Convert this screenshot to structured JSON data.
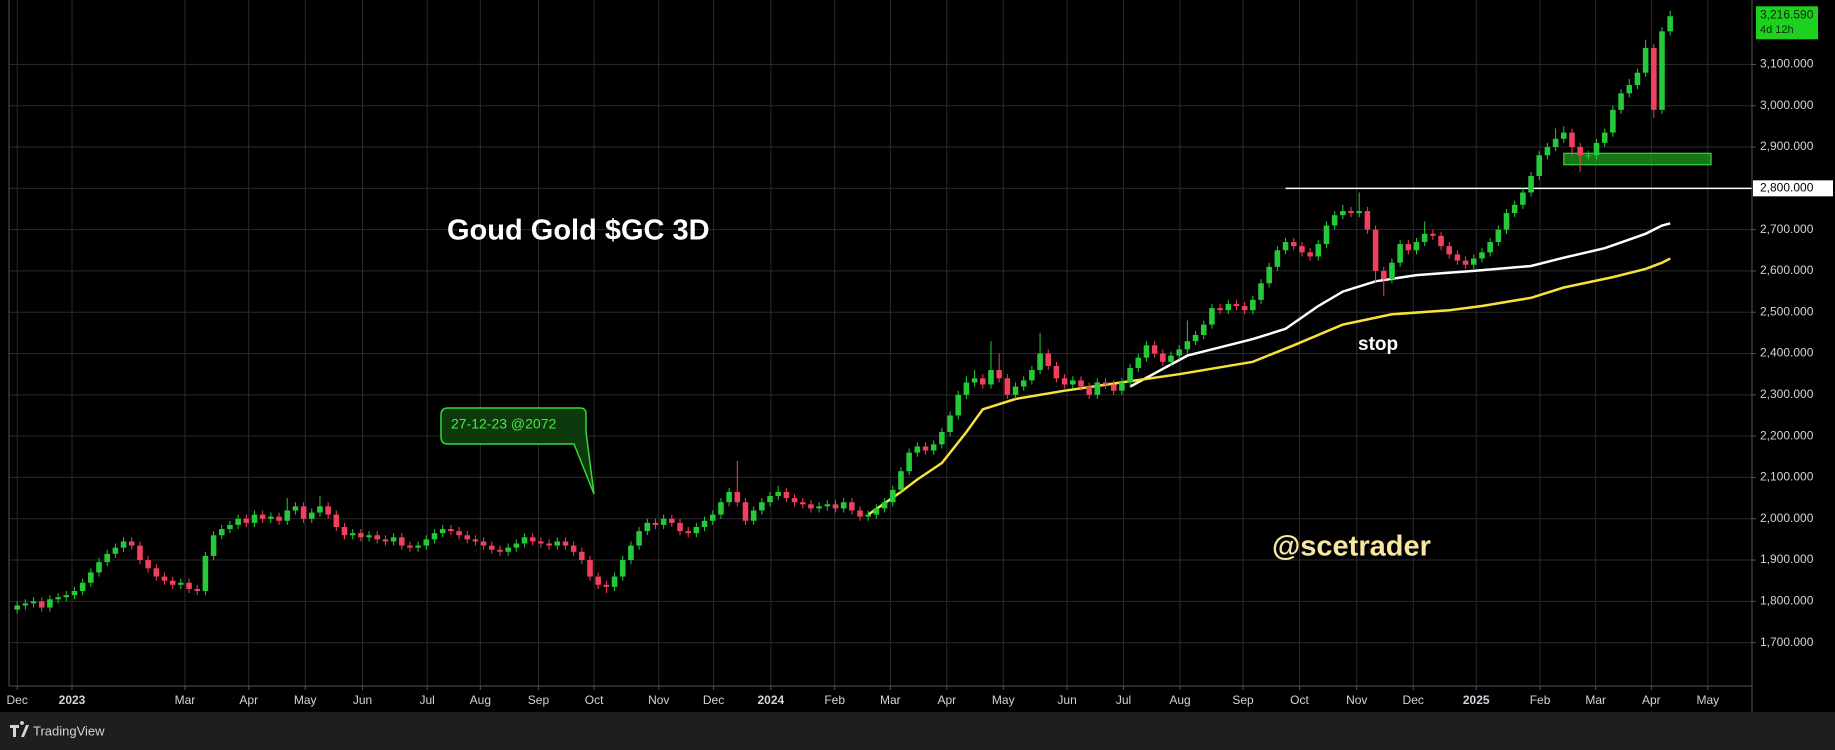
{
  "chart_data": {
    "type": "candlestick",
    "title": "Goud Gold $GC 3D",
    "watermark": "@scetrader",
    "callout": "27-12-23 @2072",
    "stop_label": "stop",
    "up_color": "#26c93a",
    "down_color": "#f0405d",
    "open": [
      1780,
      1790,
      1795,
      1800,
      1785,
      1805,
      1810,
      1815,
      1825,
      1845,
      1870,
      1895,
      1915,
      1930,
      1945,
      1935,
      1900,
      1880,
      1860,
      1850,
      1840,
      1845,
      1830,
      1825,
      1910,
      1960,
      1975,
      1985,
      2000,
      1990,
      2010,
      2000,
      2005,
      1995,
      2020,
      2030,
      2000,
      2015,
      2030,
      2010,
      1980,
      1960,
      1965,
      1955,
      1960,
      1950,
      1945,
      1955,
      1935,
      1930,
      1935,
      1950,
      1965,
      1975,
      1970,
      1960,
      1950,
      1945,
      1935,
      1925,
      1920,
      1930,
      1940,
      1955,
      1945,
      1940,
      1935,
      1945,
      1935,
      1920,
      1900,
      1860,
      1840,
      1835,
      1860,
      1900,
      1935,
      1970,
      1990,
      1985,
      2000,
      1990,
      1970,
      1965,
      1980,
      1995,
      2010,
      2040,
      2065,
      2040,
      1995,
      2020,
      2040,
      2055,
      2065,
      2050,
      2040,
      2035,
      2025,
      2030,
      2035,
      2025,
      2040,
      2020,
      2005,
      2010,
      2025,
      2040,
      2070,
      2115,
      2160,
      2175,
      2165,
      2180,
      2210,
      2250,
      2300,
      2330,
      2340,
      2325,
      2360,
      2340,
      2300,
      2320,
      2335,
      2360,
      2400,
      2370,
      2340,
      2325,
      2335,
      2320,
      2300,
      2330,
      2325,
      2310,
      2330,
      2365,
      2390,
      2420,
      2400,
      2380,
      2395,
      2410,
      2430,
      2445,
      2470,
      2510,
      2505,
      2520,
      2515,
      2505,
      2530,
      2570,
      2610,
      2650,
      2670,
      2660,
      2645,
      2635,
      2665,
      2710,
      2735,
      2745,
      2740,
      2745,
      2700,
      2600,
      2580,
      2620,
      2665,
      2650,
      2670,
      2690,
      2685,
      2660,
      2640,
      2625,
      2615,
      2630,
      2645,
      2670,
      2700,
      2740,
      2760,
      2790,
      2830,
      2880,
      2900,
      2920,
      2935,
      2900,
      2880,
      2880,
      2910,
      2935,
      2990,
      3030,
      3050,
      3080,
      3140,
      2990,
      3180
    ],
    "high": [
      1800,
      1805,
      1810,
      1810,
      1815,
      1820,
      1825,
      1835,
      1855,
      1880,
      1905,
      1925,
      1940,
      1955,
      1955,
      1945,
      1910,
      1890,
      1870,
      1860,
      1855,
      1855,
      1840,
      1920,
      1970,
      1985,
      1995,
      2010,
      2010,
      2020,
      2020,
      2015,
      2015,
      2050,
      2040,
      2040,
      2025,
      2055,
      2040,
      2020,
      1990,
      1975,
      1975,
      1970,
      1970,
      1960,
      1965,
      1965,
      1945,
      1945,
      1960,
      1975,
      1985,
      1985,
      1980,
      1970,
      1960,
      1955,
      1945,
      1935,
      1940,
      1950,
      1965,
      1965,
      1955,
      1950,
      1955,
      1955,
      1945,
      1930,
      1910,
      1870,
      1850,
      1870,
      1910,
      1945,
      1980,
      2000,
      2000,
      2010,
      2010,
      2000,
      1980,
      1990,
      2005,
      2020,
      2050,
      2075,
      2140,
      2050,
      2030,
      2050,
      2065,
      2080,
      2075,
      2060,
      2050,
      2045,
      2040,
      2045,
      2045,
      2050,
      2050,
      2030,
      2020,
      2035,
      2050,
      2080,
      2125,
      2170,
      2185,
      2185,
      2190,
      2220,
      2260,
      2310,
      2345,
      2360,
      2350,
      2430,
      2400,
      2350,
      2330,
      2345,
      2370,
      2450,
      2410,
      2380,
      2350,
      2345,
      2345,
      2330,
      2340,
      2340,
      2335,
      2340,
      2375,
      2400,
      2430,
      2430,
      2410,
      2405,
      2420,
      2480,
      2455,
      2480,
      2520,
      2520,
      2530,
      2530,
      2525,
      2540,
      2580,
      2620,
      2660,
      2680,
      2680,
      2670,
      2655,
      2675,
      2720,
      2745,
      2760,
      2755,
      2790,
      2755,
      2710,
      2610,
      2630,
      2675,
      2675,
      2680,
      2720,
      2700,
      2695,
      2670,
      2650,
      2635,
      2640,
      2655,
      2680,
      2710,
      2750,
      2770,
      2800,
      2840,
      2890,
      2910,
      2945,
      2950,
      2945,
      2910,
      2890,
      2920,
      2945,
      3000,
      3040,
      3065,
      3090,
      3160,
      3150,
      3190,
      3230
    ],
    "low": [
      1770,
      1780,
      1785,
      1775,
      1775,
      1795,
      1800,
      1805,
      1815,
      1835,
      1860,
      1885,
      1905,
      1920,
      1925,
      1890,
      1870,
      1850,
      1840,
      1830,
      1830,
      1820,
      1815,
      1815,
      1900,
      1950,
      1965,
      1975,
      1980,
      1980,
      1990,
      1990,
      1985,
      1985,
      2010,
      1990,
      1990,
      2005,
      2000,
      1970,
      1950,
      1950,
      1945,
      1945,
      1940,
      1935,
      1935,
      1925,
      1920,
      1920,
      1925,
      1940,
      1955,
      1960,
      1950,
      1940,
      1935,
      1925,
      1915,
      1910,
      1910,
      1920,
      1930,
      1935,
      1930,
      1925,
      1925,
      1925,
      1910,
      1890,
      1850,
      1830,
      1820,
      1825,
      1850,
      1890,
      1925,
      1960,
      1975,
      1975,
      1980,
      1960,
      1955,
      1955,
      1970,
      1985,
      2000,
      2030,
      2030,
      1985,
      1985,
      2010,
      2030,
      2045,
      2040,
      2030,
      2025,
      2015,
      2015,
      2020,
      2015,
      2015,
      2010,
      1995,
      1995,
      2000,
      2015,
      2030,
      2060,
      2105,
      2150,
      2155,
      2155,
      2170,
      2200,
      2240,
      2290,
      2320,
      2315,
      2315,
      2330,
      2290,
      2290,
      2310,
      2325,
      2350,
      2360,
      2330,
      2315,
      2315,
      2310,
      2290,
      2290,
      2315,
      2300,
      2300,
      2320,
      2355,
      2380,
      2390,
      2370,
      2370,
      2385,
      2400,
      2420,
      2435,
      2460,
      2495,
      2495,
      2505,
      2495,
      2495,
      2520,
      2560,
      2600,
      2640,
      2650,
      2635,
      2625,
      2625,
      2655,
      2700,
      2725,
      2730,
      2730,
      2690,
      2570,
      2540,
      2570,
      2610,
      2640,
      2640,
      2660,
      2675,
      2650,
      2630,
      2615,
      2605,
      2605,
      2620,
      2635,
      2660,
      2690,
      2730,
      2750,
      2780,
      2820,
      2870,
      2890,
      2910,
      2880,
      2840,
      2870,
      2870,
      2900,
      2925,
      2980,
      3020,
      3040,
      3070,
      2970,
      2980,
      3170
    ],
    "close": [
      1790,
      1795,
      1800,
      1785,
      1805,
      1810,
      1815,
      1825,
      1845,
      1870,
      1895,
      1915,
      1930,
      1945,
      1935,
      1900,
      1880,
      1860,
      1850,
      1840,
      1845,
      1830,
      1825,
      1910,
      1960,
      1975,
      1985,
      2000,
      1990,
      2010,
      2000,
      2005,
      1995,
      2020,
      2030,
      2000,
      2015,
      2030,
      2010,
      1980,
      1960,
      1965,
      1955,
      1960,
      1950,
      1945,
      1955,
      1935,
      1930,
      1935,
      1950,
      1965,
      1975,
      1970,
      1960,
      1950,
      1945,
      1935,
      1925,
      1920,
      1930,
      1940,
      1955,
      1945,
      1940,
      1935,
      1945,
      1935,
      1920,
      1900,
      1860,
      1840,
      1835,
      1860,
      1900,
      1935,
      1970,
      1990,
      1985,
      2000,
      1990,
      1970,
      1965,
      1980,
      1995,
      2010,
      2040,
      2065,
      2040,
      1995,
      2020,
      2040,
      2055,
      2065,
      2050,
      2040,
      2035,
      2025,
      2030,
      2035,
      2025,
      2040,
      2020,
      2005,
      2010,
      2025,
      2040,
      2070,
      2115,
      2160,
      2175,
      2165,
      2180,
      2210,
      2250,
      2300,
      2330,
      2340,
      2325,
      2360,
      2340,
      2300,
      2320,
      2335,
      2360,
      2400,
      2370,
      2340,
      2325,
      2335,
      2320,
      2300,
      2330,
      2325,
      2310,
      2330,
      2365,
      2390,
      2420,
      2400,
      2380,
      2395,
      2410,
      2430,
      2445,
      2470,
      2510,
      2505,
      2520,
      2515,
      2505,
      2530,
      2570,
      2610,
      2650,
      2670,
      2660,
      2645,
      2635,
      2665,
      2710,
      2735,
      2745,
      2740,
      2745,
      2700,
      2600,
      2580,
      2620,
      2665,
      2650,
      2670,
      2690,
      2685,
      2660,
      2640,
      2625,
      2615,
      2630,
      2645,
      2670,
      2700,
      2740,
      2760,
      2790,
      2830,
      2880,
      2900,
      2920,
      2935,
      2900,
      2880,
      2880,
      2910,
      2935,
      2990,
      3030,
      3050,
      3080,
      3140,
      2990,
      3180,
      3216.59
    ],
    "ma": [
      {
        "color": "#ffffff",
        "x": [
          136,
          143,
          151,
          155,
          159,
          162,
          166,
          171,
          178,
          185,
          189,
          194,
          199,
          201,
          202
        ],
        "values": [
          2320,
          2395,
          2435,
          2460,
          2515,
          2550,
          2575,
          2590,
          2600,
          2612,
          2632,
          2655,
          2690,
          2710,
          2715
        ]
      },
      {
        "color": "#f5e23b",
        "x": [
          104,
          108,
          110,
          113,
          116,
          118,
          122,
          128,
          135,
          142,
          151,
          156,
          162,
          168,
          175,
          179,
          185,
          189,
          195,
          199,
          201,
          202
        ],
        "values": [
          2010,
          2065,
          2095,
          2135,
          2210,
          2265,
          2290,
          2310,
          2330,
          2350,
          2380,
          2420,
          2470,
          2495,
          2505,
          2515,
          2535,
          2560,
          2585,
          2605,
          2620,
          2630
        ]
      }
    ],
    "hline": {
      "value": 2800,
      "label": "2,800.000",
      "x": [
        155,
        212
      ],
      "color": "#ffffff"
    },
    "zone": {
      "x": [
        189,
        207
      ],
      "y": [
        2857,
        2885
      ],
      "color": "#1e9e1e"
    },
    "last_price": {
      "value": 3216.59,
      "label": "3,216.590"
    },
    "countdown": "4d 12h",
    "xlim": [
      -1,
      212
    ],
    "ylim": [
      1595,
      3256
    ],
    "xticks": [
      {
        "value": 0,
        "label": "Dec"
      },
      {
        "value": 6.7,
        "label": "2023"
      },
      {
        "value": 20.5,
        "label": "Mar"
      },
      {
        "value": 28.3,
        "label": "Apr"
      },
      {
        "value": 35.2,
        "label": "May"
      },
      {
        "value": 42.2,
        "label": "Jun"
      },
      {
        "value": 50.1,
        "label": "Jul"
      },
      {
        "value": 56.6,
        "label": "Aug"
      },
      {
        "value": 63.7,
        "label": "Sep"
      },
      {
        "value": 70.5,
        "label": "Oct"
      },
      {
        "value": 78.4,
        "label": "Nov"
      },
      {
        "value": 85.1,
        "label": "Dec"
      },
      {
        "value": 92.1,
        "label": "2024"
      },
      {
        "value": 99.9,
        "label": "Feb"
      },
      {
        "value": 106.7,
        "label": "Mar"
      },
      {
        "value": 113.6,
        "label": "Apr"
      },
      {
        "value": 120.5,
        "label": "May"
      },
      {
        "value": 128.3,
        "label": "Jun"
      },
      {
        "value": 135.2,
        "label": "Jul"
      },
      {
        "value": 142.1,
        "label": "Aug"
      },
      {
        "value": 149.8,
        "label": "Sep"
      },
      {
        "value": 156.7,
        "label": "Oct"
      },
      {
        "value": 163.7,
        "label": "Nov"
      },
      {
        "value": 170.6,
        "label": "Dec"
      },
      {
        "value": 178.3,
        "label": "2025"
      },
      {
        "value": 186.1,
        "label": "Feb"
      },
      {
        "value": 192.9,
        "label": "Mar"
      },
      {
        "value": 199.7,
        "label": "Apr"
      },
      {
        "value": 206.6,
        "label": "May"
      }
    ],
    "yticks": [
      {
        "value": 1700,
        "label": "1,700.000"
      },
      {
        "value": 1800,
        "label": "1,800.000"
      },
      {
        "value": 1900,
        "label": "1,900.000"
      },
      {
        "value": 2000,
        "label": "2,000.000"
      },
      {
        "value": 2100,
        "label": "2,100.000"
      },
      {
        "value": 2200,
        "label": "2,200.000"
      },
      {
        "value": 2300,
        "label": "2,300.000"
      },
      {
        "value": 2400,
        "label": "2,400.000"
      },
      {
        "value": 2500,
        "label": "2,500.000"
      },
      {
        "value": 2600,
        "label": "2,600.000"
      },
      {
        "value": 2700,
        "label": "2,700.000"
      },
      {
        "value": 2800,
        "label": "2,800.000"
      },
      {
        "value": 2900,
        "label": "2,900.000"
      },
      {
        "value": 3000,
        "label": "3,000.000"
      },
      {
        "value": 3100,
        "label": "3,100.000"
      }
    ],
    "grid": true
  },
  "footer": {
    "brand": "TradingView"
  }
}
